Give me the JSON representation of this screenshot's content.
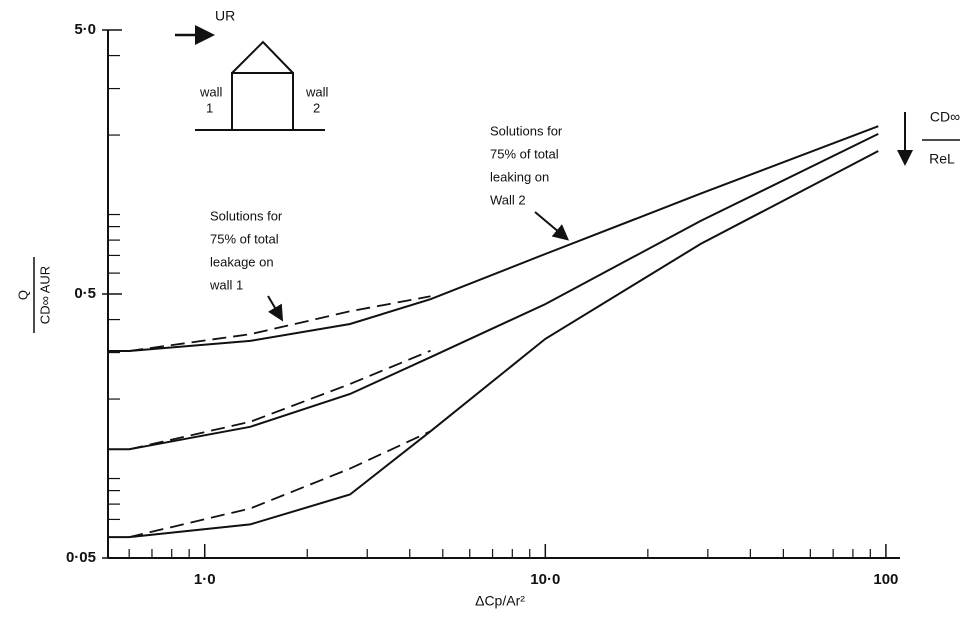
{
  "chart_data": {
    "type": "line",
    "xlabel": "ΔCp/Ar²",
    "ylabel_numerator": "Q",
    "ylabel_denominator": "CD∞ AUR",
    "log_x": true,
    "log_y": true,
    "xlim": [
      0.52,
      110
    ],
    "ylim": [
      0.05,
      5
    ],
    "xticks": [
      {
        "value": 1,
        "label": "1·0"
      },
      {
        "value": 10,
        "label": "10·0"
      },
      100
    ],
    "yticks": [
      {
        "value": 0.05,
        "label": "0·05"
      },
      {
        "value": 0.5,
        "label": "0·5"
      },
      {
        "value": 5,
        "label": "5·0"
      }
    ],
    "xminorticks": [
      0.6,
      0.7,
      0.8,
      0.9,
      2,
      3,
      4,
      5,
      6,
      7,
      8,
      9,
      20,
      30,
      40,
      50,
      60,
      70,
      80,
      90
    ],
    "yminorticks": [
      0.06,
      0.07,
      0.08,
      0.09,
      0.1,
      0.2,
      0.3,
      0.4,
      0.6,
      0.7,
      0.8,
      0.9,
      1,
      2,
      3,
      4
    ],
    "x": [
      0.52,
      0.6,
      1.36,
      2.67,
      4.6,
      10,
      28.6,
      95
    ],
    "series": [
      {
        "color": "#111111",
        "dashed": false,
        "values": [
          0.304,
          0.304,
          0.332,
          0.385,
          0.478,
          0.709,
          1.2,
          2.16
        ]
      },
      {
        "color": "#111111",
        "dashed": true,
        "values": [
          null,
          0.304,
          0.352,
          0.43,
          0.49,
          null,
          null,
          null
        ]
      },
      {
        "color": "#111111",
        "dashed": false,
        "values": [
          0.129,
          0.129,
          0.157,
          0.209,
          0.288,
          0.458,
          0.946,
          2.02
        ]
      },
      {
        "color": "#111111",
        "dashed": true,
        "values": [
          null,
          0.129,
          0.164,
          0.228,
          0.305,
          null,
          null,
          null
        ]
      },
      {
        "color": "#111111",
        "dashed": false,
        "values": [
          0.06,
          0.06,
          0.067,
          0.087,
          0.151,
          0.338,
          0.774,
          1.74
        ]
      },
      {
        "color": "#111111",
        "dashed": true,
        "values": [
          null,
          0.06,
          0.077,
          0.109,
          0.151,
          null,
          null,
          null
        ]
      }
    ],
    "annotations": [
      {
        "lines": [
          "Solutions for",
          "75% of total",
          "leakage on",
          "wall 1"
        ]
      },
      {
        "lines": [
          "Solutions for",
          "75% of total",
          "leaking on",
          "Wall 2"
        ]
      }
    ],
    "inset": {
      "flow": "UR",
      "wall1": [
        "wall",
        "1"
      ],
      "wall2": [
        "wall",
        "2"
      ]
    },
    "re_note": {
      "top": "CD∞",
      "bottom": "ReL"
    }
  }
}
